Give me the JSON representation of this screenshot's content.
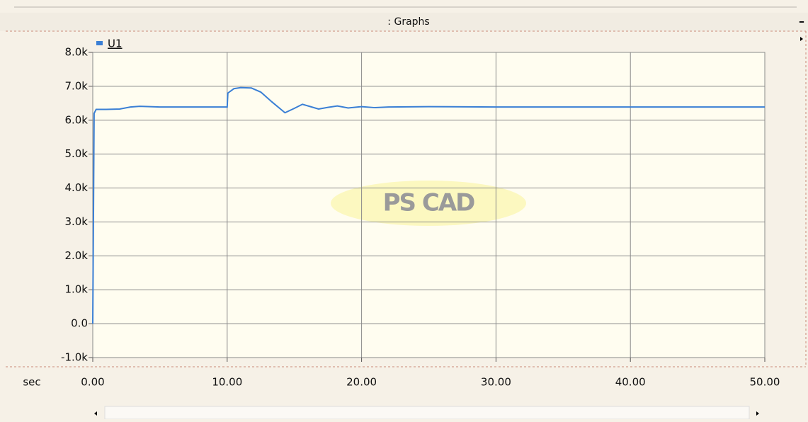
{
  "window": {
    "title": ": Graphs",
    "watermark": "PS CAD"
  },
  "chart_data": {
    "type": "line",
    "x_label": "sec",
    "x": [
      0,
      0.1,
      0.25,
      1,
      2,
      2.8,
      3.5,
      5,
      7,
      10,
      10.05,
      10.5,
      11,
      11.8,
      12.5,
      13.3,
      14.3,
      15,
      15.6,
      16.2,
      16.8,
      17.5,
      18.2,
      19,
      20,
      21,
      22,
      25,
      30,
      40,
      50
    ],
    "series": [
      {
        "name": "U1",
        "color": "#3a7fd5",
        "values": [
          0,
          6200,
          6320,
          6320,
          6330,
          6390,
          6410,
          6390,
          6390,
          6390,
          6800,
          6930,
          6960,
          6950,
          6830,
          6550,
          6220,
          6350,
          6470,
          6400,
          6330,
          6380,
          6420,
          6360,
          6400,
          6370,
          6390,
          6400,
          6390,
          6390,
          6390
        ]
      }
    ],
    "xlim": [
      0,
      50
    ],
    "xticks": [
      {
        "value": 0,
        "label": "0.00"
      },
      {
        "value": 10,
        "label": "10.00"
      },
      {
        "value": 20,
        "label": "20.00"
      },
      {
        "value": 30,
        "label": "30.00"
      },
      {
        "value": 40,
        "label": "40.00"
      },
      {
        "value": 50,
        "label": "50.00"
      }
    ],
    "ylim": [
      -1000,
      8000
    ],
    "yticks": [
      {
        "value": -1000,
        "label": "-1.0k"
      },
      {
        "value": 0,
        "label": "0.0"
      },
      {
        "value": 1000,
        "label": "1.0k"
      },
      {
        "value": 2000,
        "label": "2.0k"
      },
      {
        "value": 3000,
        "label": "3.0k"
      },
      {
        "value": 4000,
        "label": "4.0k"
      },
      {
        "value": 5000,
        "label": "5.0k"
      },
      {
        "value": 6000,
        "label": "6.0k"
      },
      {
        "value": 7000,
        "label": "7.0k"
      },
      {
        "value": 8000,
        "label": "8.0k"
      }
    ],
    "grid": true
  }
}
